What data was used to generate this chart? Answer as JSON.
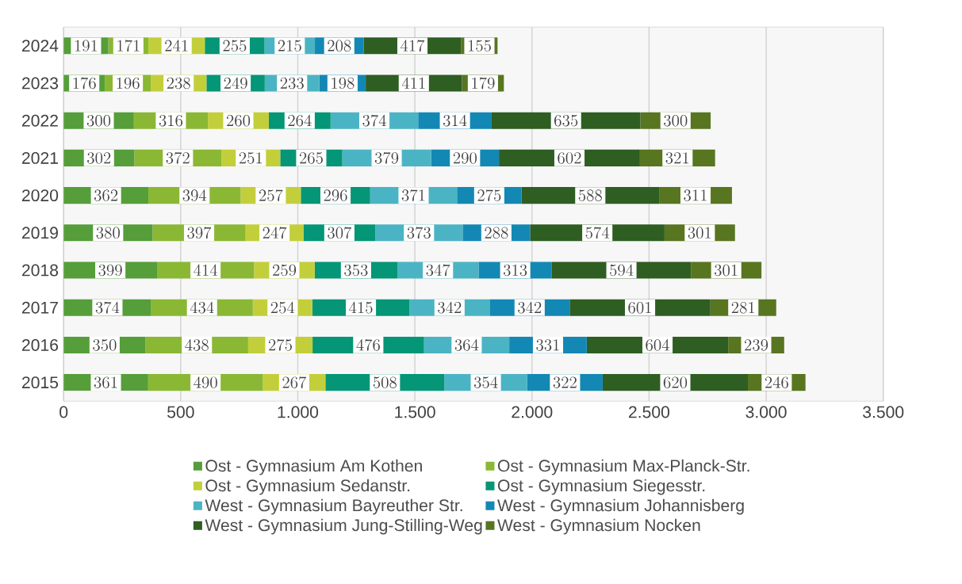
{
  "chart_data": {
    "type": "bar",
    "orientation": "horizontal",
    "stacked": true,
    "data_labels": true,
    "grid": "x",
    "legend": "bottom",
    "categories": [
      "2024",
      "2023",
      "2022",
      "2021",
      "2020",
      "2019",
      "2018",
      "2017",
      "2016",
      "2015"
    ],
    "xlim": [
      0,
      3500
    ],
    "xticks": [
      0,
      500,
      {
        "value": 1000,
        "label": "1.000"
      },
      {
        "value": 1500,
        "label": "1.500"
      },
      {
        "value": 2000,
        "label": "2.000"
      },
      {
        "value": 2500,
        "label": "2.500"
      },
      {
        "value": 3000,
        "label": "3.000"
      },
      {
        "value": 3500,
        "label": "3.500"
      }
    ],
    "series": [
      {
        "name": "Ost - Gymnasium Am Kothen",
        "color": "#559e3a",
        "values": [
          191,
          176,
          300,
          302,
          362,
          380,
          399,
          374,
          350,
          361
        ]
      },
      {
        "name": "Ost - Gymnasium Max-Planck-Str.",
        "color": "#8ab834",
        "values": [
          171,
          196,
          316,
          372,
          394,
          397,
          414,
          434,
          438,
          490
        ]
      },
      {
        "name": "Ost - Gymnasium Sedanstr.",
        "color": "#c3cf3a",
        "values": [
          241,
          238,
          260,
          251,
          257,
          247,
          259,
          254,
          275,
          267
        ]
      },
      {
        "name": "Ost - Gymnasium Siegesstr.",
        "color": "#049676",
        "values": [
          255,
          249,
          264,
          265,
          296,
          307,
          353,
          415,
          476,
          508
        ]
      },
      {
        "name": "West - Gymnasium Bayreuther Str.",
        "color": "#4bb4c4",
        "values": [
          215,
          233,
          374,
          379,
          371,
          373,
          347,
          342,
          364,
          354
        ]
      },
      {
        "name": "West - Gymnasium Johannisberg",
        "color": "#1388b4",
        "values": [
          208,
          198,
          314,
          290,
          275,
          288,
          313,
          342,
          331,
          322
        ]
      },
      {
        "name": "West - Gymnasium Jung-Stilling-Weg",
        "color": "#2e5e22",
        "values": [
          417,
          411,
          635,
          602,
          588,
          574,
          594,
          601,
          604,
          620
        ]
      },
      {
        "name": "West - Gymnasium Nocken",
        "color": "#587520",
        "values": [
          155,
          179,
          300,
          321,
          311,
          301,
          301,
          281,
          239,
          246
        ]
      }
    ]
  }
}
